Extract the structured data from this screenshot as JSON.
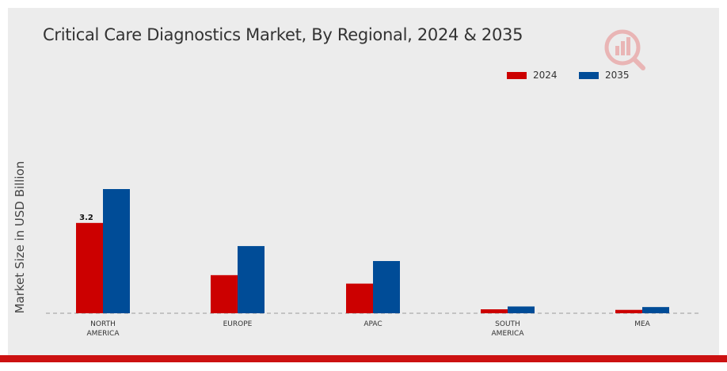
{
  "chart_data": {
    "type": "bar",
    "title": "Critical Care Diagnostics Market, By Regional, 2024 & 2035",
    "ylabel": "Market Size in USD Billion",
    "xlabel": "",
    "categories": [
      "NORTH AMERICA",
      "EUROPE",
      "APAC",
      "SOUTH AMERICA",
      "MEA"
    ],
    "category_lines": [
      [
        "NORTH",
        "AMERICA"
      ],
      [
        "EUROPE"
      ],
      [
        "APAC"
      ],
      [
        "SOUTH",
        "AMERICA"
      ],
      [
        "MEA"
      ]
    ],
    "series": [
      {
        "name": "2024",
        "color": "#cc0000",
        "values": [
          3.2,
          1.35,
          1.05,
          0.14,
          0.12
        ]
      },
      {
        "name": "2035",
        "color": "#004c97",
        "values": [
          4.4,
          2.38,
          1.85,
          0.24,
          0.22
        ]
      }
    ],
    "data_labels": [
      {
        "series": 0,
        "index": 0,
        "text": "3.2"
      }
    ],
    "ylim": [
      0,
      6.0
    ],
    "grid": false,
    "legend_position": "top-right",
    "baseline_style": "dashed"
  }
}
